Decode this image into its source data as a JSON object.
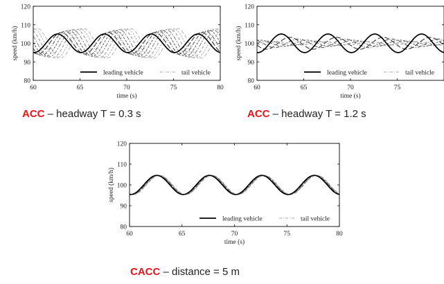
{
  "chart_data": [
    {
      "type": "line",
      "caption": {
        "bold": "ACC",
        "rest": " – headway T = 0.3 s"
      },
      "xlabel": "time (s)",
      "ylabel": "speed (km/h)",
      "xlim": [
        60,
        80
      ],
      "ylim": [
        80,
        120
      ],
      "xticks": [
        60,
        65,
        70,
        75,
        80
      ],
      "yticks": [
        80,
        90,
        100,
        110,
        120
      ],
      "legend": {
        "placement": "bottom-right",
        "entries": [
          "leading vehicle",
          "tail vehicle"
        ]
      },
      "leader": {
        "mean": 100,
        "amplitude": 5,
        "period": 5,
        "peak_time": 62.6
      },
      "followers": [
        {
          "amplitude": 5.8,
          "lag": 0.4
        },
        {
          "amplitude": 6.5,
          "lag": 0.8
        },
        {
          "amplitude": 7.0,
          "lag": 1.2
        },
        {
          "amplitude": 7.4,
          "lag": 1.6
        },
        {
          "amplitude": 7.7,
          "lag": 2.0
        },
        {
          "amplitude": 7.9,
          "lag": 2.4
        },
        {
          "amplitude": 8.0,
          "lag": 2.8
        }
      ]
    },
    {
      "type": "line",
      "caption": {
        "bold": "ACC",
        "rest": " – headway T = 1.2 s"
      },
      "xlabel": "time (s)",
      "ylabel": "speed (km/h)",
      "xlim": [
        60,
        80
      ],
      "ylim": [
        80,
        120
      ],
      "xticks": [
        60,
        65,
        70,
        75
      ],
      "yticks": [
        80,
        90,
        100,
        110,
        120
      ],
      "legend": {
        "placement": "bottom-right",
        "entries": [
          "leading vehicle",
          "tail vehicle"
        ]
      },
      "leader": {
        "mean": 100,
        "amplitude": 5,
        "period": 5,
        "peak_time": 62.6
      },
      "followers": [
        {
          "amplitude": 3.2,
          "lag": 0.9
        },
        {
          "amplitude": 2.3,
          "lag": 1.8
        },
        {
          "amplitude": 1.7,
          "lag": 2.7
        },
        {
          "amplitude": 1.2,
          "lag": 3.6
        },
        {
          "amplitude": 0.9,
          "lag": 4.5
        }
      ]
    },
    {
      "type": "line",
      "caption": {
        "bold": "CACC",
        "rest": " – distance = 5 m"
      },
      "xlabel": "time (s)",
      "ylabel": "speed (km/h)",
      "xlim": [
        60,
        80
      ],
      "ylim": [
        80,
        120
      ],
      "xticks": [
        60,
        65,
        70,
        75,
        80
      ],
      "yticks": [
        80,
        90,
        100,
        110,
        120
      ],
      "legend": {
        "placement": "bottom-right",
        "entries": [
          "leading vehicle",
          "tail vehicle"
        ]
      },
      "leader": {
        "mean": 100,
        "amplitude": 4.6,
        "period": 5,
        "peak_time": 62.6
      },
      "followers": [
        {
          "amplitude": 4.6,
          "lag": 0.05
        },
        {
          "amplitude": 4.6,
          "lag": 0.1
        },
        {
          "amplitude": 4.6,
          "lag": 0.15
        },
        {
          "amplitude": 4.6,
          "lag": 0.2
        },
        {
          "amplitude": 4.6,
          "lag": 0.25
        }
      ]
    }
  ]
}
